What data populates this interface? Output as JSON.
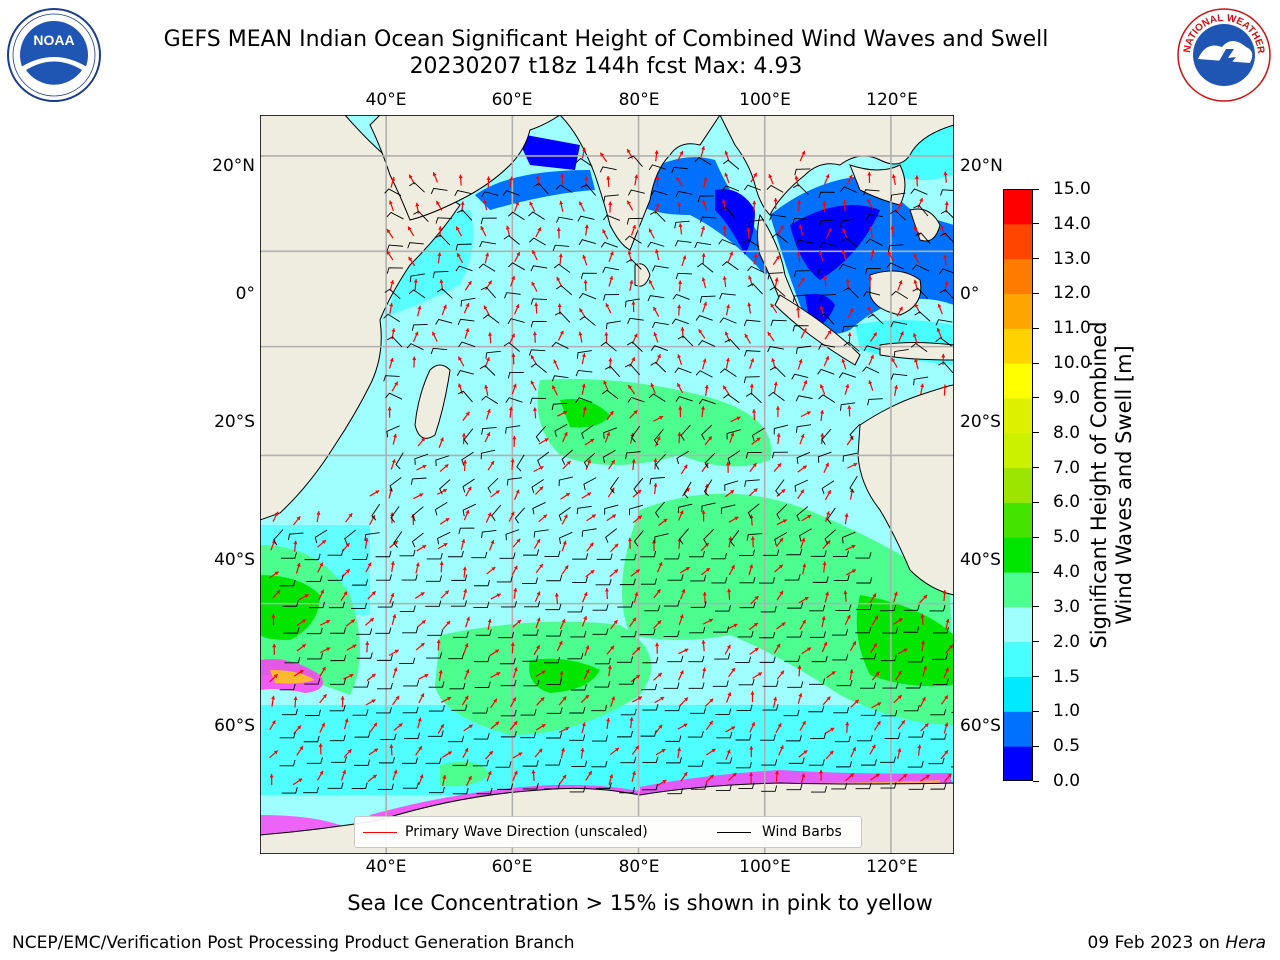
{
  "header": {
    "title_line1": "GEFS MEAN Indian Ocean Significant Height of Combined Wind Waves and Swell",
    "title_line2": "20230207 t18z 144h fcst   Max: 4.93"
  },
  "logos": {
    "left": "noaa-logo",
    "right": "national-weather-service-logo",
    "left_text": "NOAA",
    "right_text": "NATIONAL WEATHER SERVICE"
  },
  "map": {
    "lon_labels": [
      "40°E",
      "60°E",
      "80°E",
      "100°E",
      "120°E"
    ],
    "lat_labels": [
      "20°N",
      "0°",
      "20°S",
      "40°S",
      "60°S"
    ],
    "lon_range": [
      20,
      130
    ],
    "lat_range": [
      -78,
      28
    ],
    "land_color": "#efede0",
    "ocean_base_color": "#9ffefe"
  },
  "legend": {
    "wave_label": "Primary Wave Direction (unscaled)",
    "wind_label": "Wind Barbs",
    "wave_color": "#ff0000",
    "wind_color": "#000000"
  },
  "colorbar": {
    "title_line1": "Significant Height of Combined",
    "title_line2": "Wind Waves and Swell [m]",
    "ticks": [
      "0.0",
      "0.5",
      "1.0",
      "1.5",
      "2.0",
      "3.0",
      "4.0",
      "5.0",
      "6.0",
      "7.0",
      "8.0",
      "9.0",
      "10.0",
      "11.0",
      "12.0",
      "13.0",
      "14.0",
      "15.0"
    ],
    "colors": [
      "#0000ff",
      "#0070ff",
      "#00e9ff",
      "#47ffff",
      "#9ffefe",
      "#4dff8f",
      "#00e600",
      "#45e400",
      "#9be500",
      "#cbf000",
      "#ddf000",
      "#ffff00",
      "#ffd200",
      "#ffa500",
      "#ff7b00",
      "#ff4500",
      "#ff0000"
    ]
  },
  "notes": {
    "ice": "Sea Ice Concentration > 15% is shown in pink to yellow"
  },
  "footer": {
    "left": "NCEP/EMC/Verification Post Processing Product Generation Branch",
    "right_date": "09 Feb 2023 on ",
    "right_host": "Hera"
  }
}
